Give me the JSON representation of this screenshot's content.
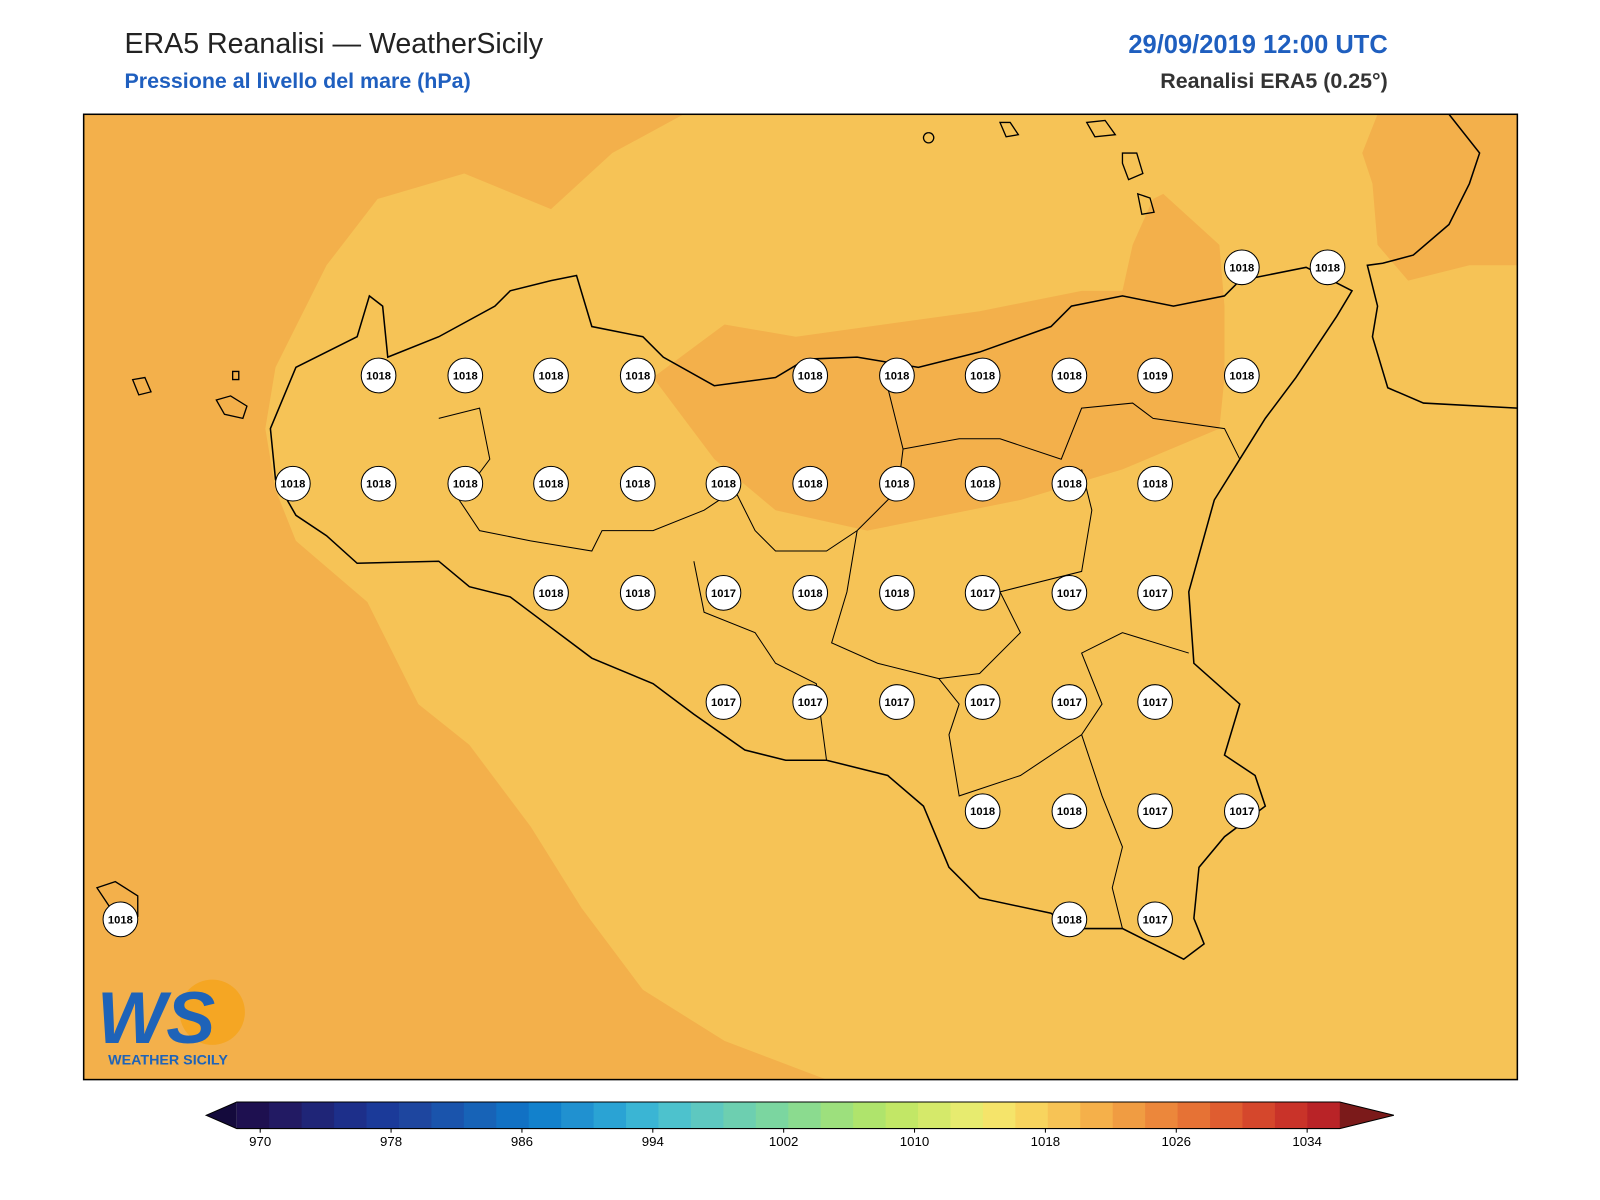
{
  "header": {
    "title": "ERA5 Reanalisi — WeatherSicily",
    "subtitle": "Pressione al livello del mare (hPa)",
    "date": "29/09/2019 12:00 UTC",
    "source": "Reanalisi ERA5 (0.25°)"
  },
  "stations": [
    1018,
    1018,
    1018,
    1018,
    1018,
    1018,
    1018,
    1018,
    1018,
    1018,
    1019,
    1018,
    1018,
    1018,
    1018,
    1018,
    1018,
    1018,
    1018,
    1018,
    1018,
    1018,
    1018,
    1018,
    1018,
    1017,
    1018,
    1018,
    1017,
    1017,
    1017,
    1017,
    1017,
    1017,
    1017,
    1017,
    1017,
    1018,
    1018,
    1017,
    1017,
    1018,
    1018,
    1017
  ],
  "logo": {
    "mark": "WS",
    "name": "WEATHER SICILY"
  },
  "colorbar": {
    "ticks": [
      970,
      978,
      986,
      994,
      1002,
      1010,
      1018,
      1026,
      1034
    ],
    "colors": [
      "#1e1050",
      "#221a63",
      "#1f2577",
      "#1d2f8a",
      "#1b3a99",
      "#1e469f",
      "#1a54ac",
      "#1763b7",
      "#1171c4",
      "#1281cc",
      "#2091d0",
      "#2aa3d4",
      "#3ab5d4",
      "#4dc2cd",
      "#5ec8c0",
      "#6dcfb0",
      "#7bd6a0",
      "#8bdb8f",
      "#9de07d",
      "#afe46c",
      "#c2e766",
      "#d5e96a",
      "#e7eb6f",
      "#f5e46a",
      "#f8d45e",
      "#f7c355",
      "#f5b04a",
      "#f09c42",
      "#ec873b",
      "#e67235",
      "#df5d30",
      "#d5472c",
      "#c93329",
      "#b92327"
    ],
    "under": "#140a3c",
    "over": "#7b1a1a"
  }
}
